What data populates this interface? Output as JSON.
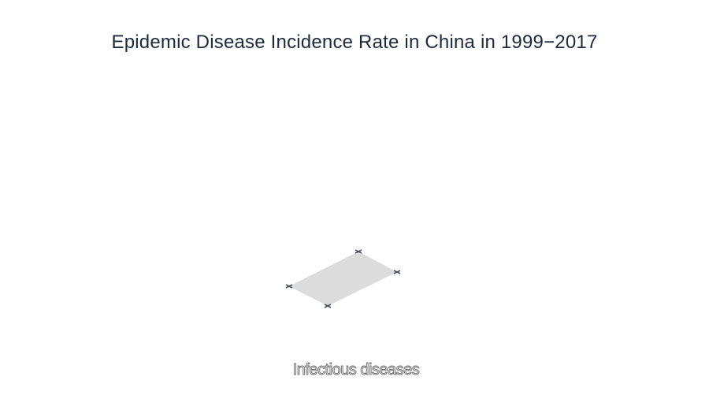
{
  "title": "Epidemic  Disease Incidence  Rate in China in 1999−2017",
  "subtitle": "Infectious diseases",
  "colors": {
    "title": "#1c2a3f",
    "plane_fill": "#dcdcdc",
    "marker": "#4a4f58"
  },
  "icons": [
    "cross-marker-icon"
  ]
}
